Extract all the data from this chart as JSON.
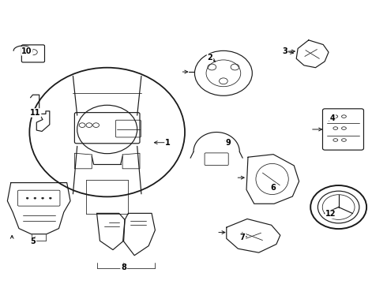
{
  "bg_color": "#ffffff",
  "line_color": "#1a1a1a",
  "label_color": "#000000",
  "fig_width": 4.9,
  "fig_height": 3.6,
  "dpi": 100
}
